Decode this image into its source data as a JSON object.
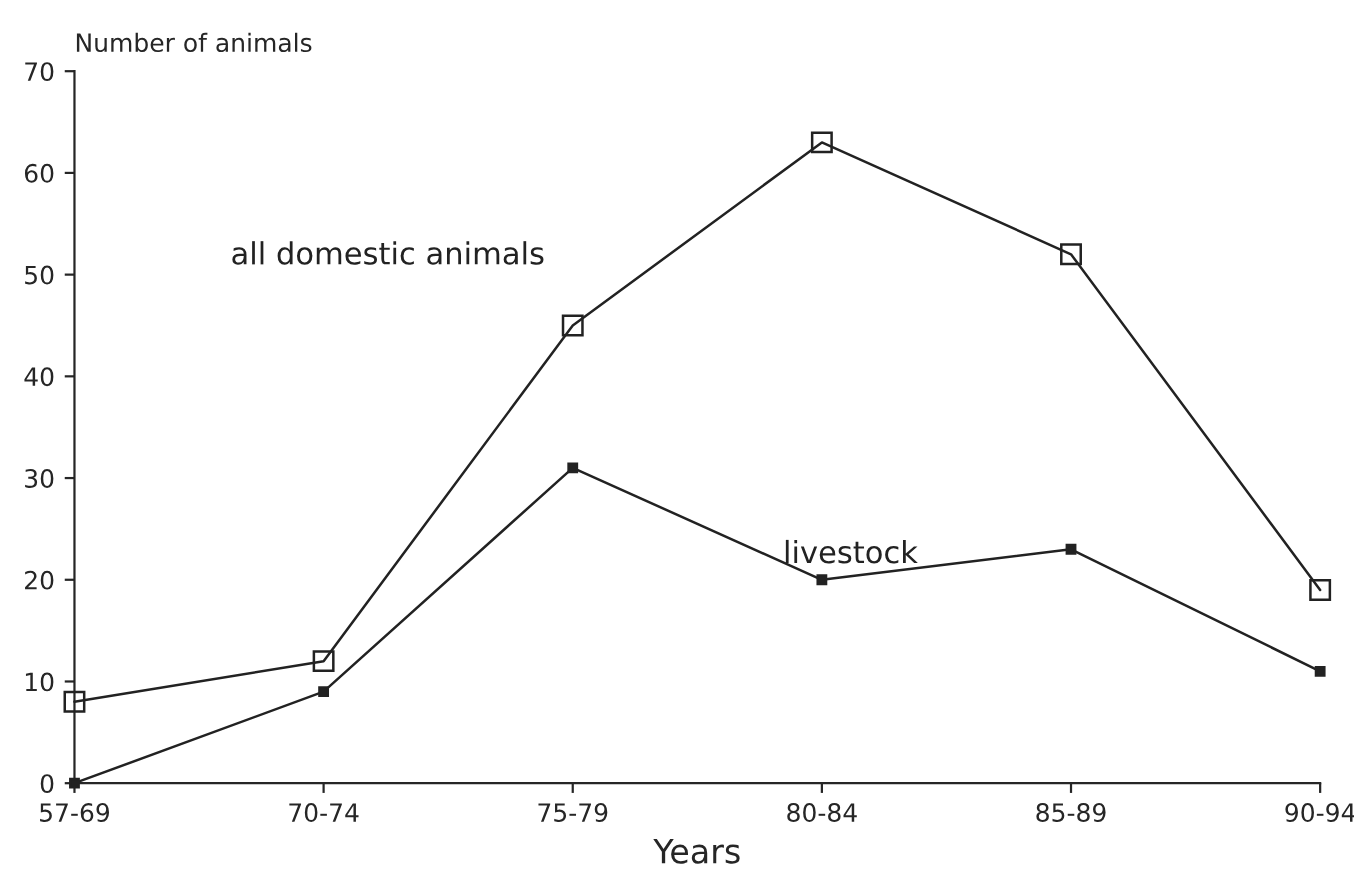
{
  "chart_data": {
    "type": "line",
    "ylabel": "Number of animals",
    "xlabel": "Years",
    "categories": [
      "57-69",
      "70-74",
      "75-79",
      "80-84",
      "85-89",
      "90-94"
    ],
    "series": [
      {
        "name": "all domestic animals",
        "color": "#222222",
        "values": [
          8,
          12,
          45,
          63,
          52,
          19
        ],
        "marker": "square"
      },
      {
        "name": "livestock",
        "color": "#222222",
        "values": [
          0,
          9,
          31,
          20,
          23,
          11
        ],
        "marker": "square"
      }
    ],
    "ylim": [
      0,
      70
    ],
    "yticks": [
      0,
      10,
      20,
      30,
      40,
      50,
      60,
      70
    ],
    "grid": false,
    "legend": false,
    "line_style": "solid"
  }
}
